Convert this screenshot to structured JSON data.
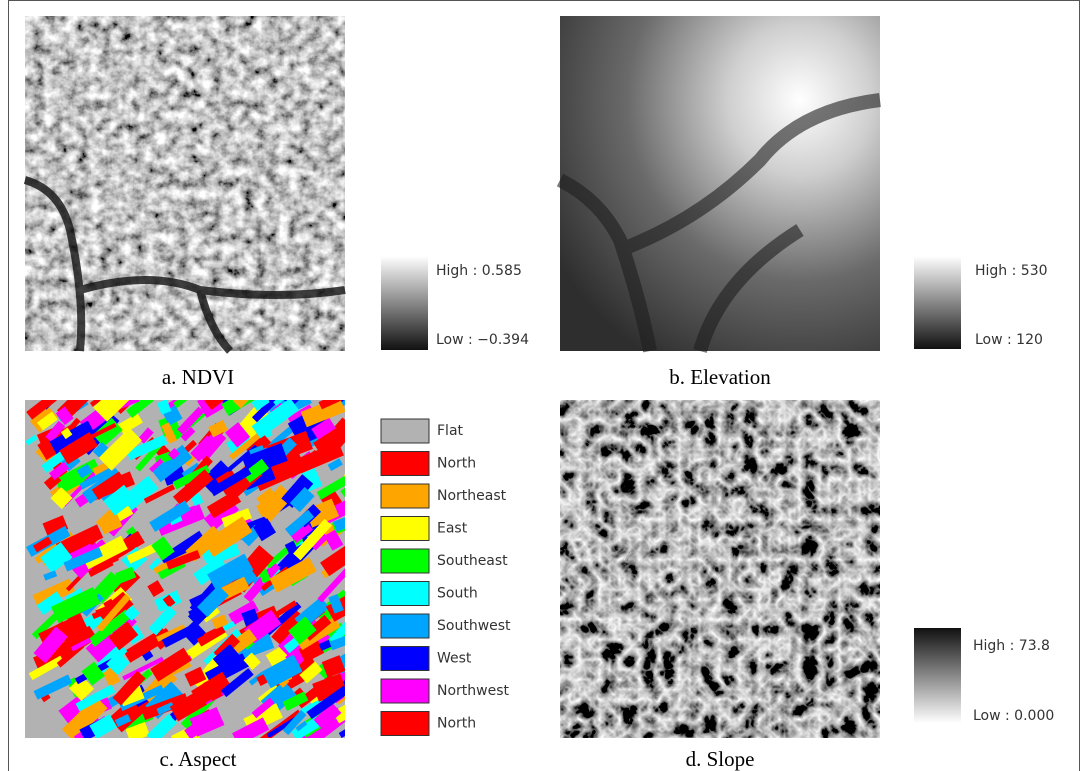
{
  "panels": [
    {
      "caption": "a.  NDVI",
      "legend": {
        "high": "High : 0.585",
        "low": "Low : −0.394"
      }
    },
    {
      "caption": "b.  Elevation",
      "legend": {
        "high": "High : 530",
        "low": "Low : 120"
      }
    },
    {
      "caption": "c.  Aspect",
      "legend": {
        "items": [
          {
            "label": "Flat",
            "color": "#b2b2b2"
          },
          {
            "label": "North",
            "color": "#ff0000"
          },
          {
            "label": "Northeast",
            "color": "#ffa500"
          },
          {
            "label": "East",
            "color": "#ffff00"
          },
          {
            "label": "Southeast",
            "color": "#00ff00"
          },
          {
            "label": "South",
            "color": "#00ffff"
          },
          {
            "label": "Southwest",
            "color": "#00a5ff"
          },
          {
            "label": "West",
            "color": "#0000ff"
          },
          {
            "label": "Northwest",
            "color": "#ff00ff"
          },
          {
            "label": "North",
            "color": "#ff0000"
          }
        ]
      }
    },
    {
      "caption": "d.  Slope",
      "legend": {
        "high": "High : 73.8",
        "low": "Low : 0.000"
      }
    }
  ]
}
